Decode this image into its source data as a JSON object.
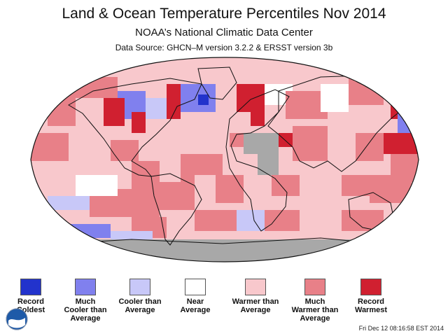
{
  "title": "Land & Ocean Temperature Percentiles Nov 2014",
  "subtitle": "NOAA’s National Climatic Data Center",
  "source": "Data Source: GHCN–M version 3.2.2 & ERSST version 3b",
  "timestamp": "Fri Dec 12 08:16:58 EST 2014",
  "logo_text": "NOAA",
  "colors": {
    "record_coldest": "#2233cc",
    "much_cooler": "#8080ee",
    "cooler": "#c8c8f8",
    "near": "#ffffff",
    "warmer": "#f8c8cc",
    "much_warmer": "#e88088",
    "record_warmest": "#d02030",
    "no_data": "#a8a8a8"
  },
  "legend": [
    {
      "key": "record_coldest",
      "label": "Record\nColdest"
    },
    {
      "key": "much_cooler",
      "label": "Much\nCooler than\nAverage"
    },
    {
      "key": "cooler",
      "label": "Cooler than\nAverage"
    },
    {
      "key": "near",
      "label": "Near\nAverage"
    },
    {
      "key": "warmer",
      "label": "Warmer than\nAverage"
    },
    {
      "key": "much_warmer",
      "label": "Much\nWarmer than\nAverage"
    },
    {
      "key": "record_warmest",
      "label": "Record\nWarmest"
    }
  ]
}
